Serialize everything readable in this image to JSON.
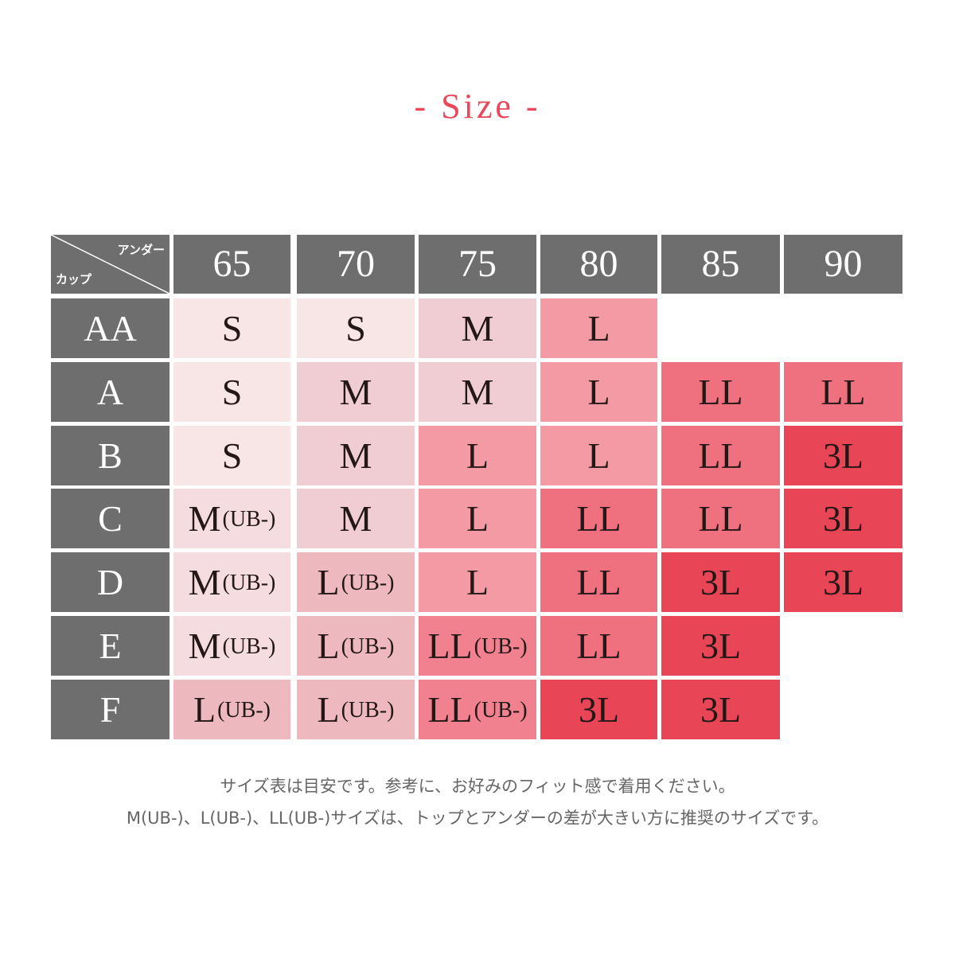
{
  "title": "- Size -",
  "corner": {
    "under_label": "アンダー",
    "cup_label": "カップ"
  },
  "columns": [
    "65",
    "70",
    "75",
    "80",
    "85",
    "90"
  ],
  "palette": {
    "header": "#6e6e6e",
    "s": "#f8e6e7",
    "m": "#f0cdd2",
    "m_ub": "#f5dce0",
    "l": "#f49aa4",
    "l_ub": "#edb9bf",
    "ll": "#ef707e",
    "ll_ub": "#f1818e",
    "3l": "#e84557",
    "title": "#e8485a"
  },
  "rows": [
    {
      "cup": "AA",
      "cells": [
        {
          "size": "S",
          "ub": "",
          "tone": "s"
        },
        {
          "size": "S",
          "ub": "",
          "tone": "s"
        },
        {
          "size": "M",
          "ub": "",
          "tone": "m"
        },
        {
          "size": "L",
          "ub": "",
          "tone": "l"
        },
        null,
        null
      ]
    },
    {
      "cup": "A",
      "cells": [
        {
          "size": "S",
          "ub": "",
          "tone": "s"
        },
        {
          "size": "M",
          "ub": "",
          "tone": "m"
        },
        {
          "size": "M",
          "ub": "",
          "tone": "m"
        },
        {
          "size": "L",
          "ub": "",
          "tone": "l"
        },
        {
          "size": "LL",
          "ub": "",
          "tone": "ll"
        },
        {
          "size": "LL",
          "ub": "",
          "tone": "ll"
        }
      ]
    },
    {
      "cup": "B",
      "cells": [
        {
          "size": "S",
          "ub": "",
          "tone": "s"
        },
        {
          "size": "M",
          "ub": "",
          "tone": "m"
        },
        {
          "size": "L",
          "ub": "",
          "tone": "l"
        },
        {
          "size": "L",
          "ub": "",
          "tone": "l"
        },
        {
          "size": "LL",
          "ub": "",
          "tone": "ll"
        },
        {
          "size": "3L",
          "ub": "",
          "tone": "3l"
        }
      ]
    },
    {
      "cup": "C",
      "cells": [
        {
          "size": "M",
          "ub": "(UB-)",
          "tone": "m_ub"
        },
        {
          "size": "M",
          "ub": "",
          "tone": "m"
        },
        {
          "size": "L",
          "ub": "",
          "tone": "l"
        },
        {
          "size": "LL",
          "ub": "",
          "tone": "ll"
        },
        {
          "size": "LL",
          "ub": "",
          "tone": "ll"
        },
        {
          "size": "3L",
          "ub": "",
          "tone": "3l"
        }
      ]
    },
    {
      "cup": "D",
      "cells": [
        {
          "size": "M",
          "ub": "(UB-)",
          "tone": "m_ub"
        },
        {
          "size": "L",
          "ub": "(UB-)",
          "tone": "l_ub"
        },
        {
          "size": "L",
          "ub": "",
          "tone": "l"
        },
        {
          "size": "LL",
          "ub": "",
          "tone": "ll"
        },
        {
          "size": "3L",
          "ub": "",
          "tone": "3l"
        },
        {
          "size": "3L",
          "ub": "",
          "tone": "3l"
        }
      ]
    },
    {
      "cup": "E",
      "cells": [
        {
          "size": "M",
          "ub": "(UB-)",
          "tone": "m_ub"
        },
        {
          "size": "L",
          "ub": "(UB-)",
          "tone": "l_ub"
        },
        {
          "size": "LL",
          "ub": "(UB-)",
          "tone": "ll_ub"
        },
        {
          "size": "LL",
          "ub": "",
          "tone": "ll"
        },
        {
          "size": "3L",
          "ub": "",
          "tone": "3l"
        },
        null
      ]
    },
    {
      "cup": "F",
      "cells": [
        {
          "size": "L",
          "ub": "(UB-)",
          "tone": "l_ub"
        },
        {
          "size": "L",
          "ub": "(UB-)",
          "tone": "l_ub"
        },
        {
          "size": "LL",
          "ub": "(UB-)",
          "tone": "ll_ub"
        },
        {
          "size": "3L",
          "ub": "",
          "tone": "3l"
        },
        {
          "size": "3L",
          "ub": "",
          "tone": "3l"
        },
        null
      ]
    }
  ],
  "notes": [
    "サイズ表は目安です。参考に、お好みのフィット感で着用ください。",
    "M(UB-)、L(UB-)、LL(UB-)サイズは、トップとアンダーの差が大きい方に推奨のサイズです。"
  ]
}
